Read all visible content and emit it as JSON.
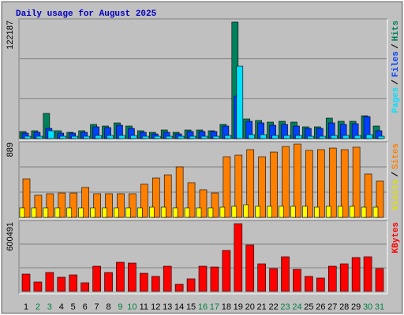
{
  "title": "Daily usage for August 2025",
  "legend_separator": "/",
  "categories": [
    "1",
    "2",
    "3",
    "4",
    "5",
    "6",
    "7",
    "8",
    "9",
    "10",
    "11",
    "12",
    "13",
    "14",
    "15",
    "16",
    "17",
    "18",
    "19",
    "20",
    "21",
    "22",
    "23",
    "24",
    "25",
    "26",
    "27",
    "28",
    "29",
    "30",
    "31"
  ],
  "category_colors": [
    "#000000",
    "#008040",
    "#008040",
    "#000000",
    "#000000",
    "#000000",
    "#000000",
    "#000000",
    "#008040",
    "#008040",
    "#000000",
    "#000000",
    "#000000",
    "#000000",
    "#000000",
    "#008040",
    "#008040",
    "#000000",
    "#000000",
    "#000000",
    "#000000",
    "#000000",
    "#008040",
    "#008040",
    "#000000",
    "#000000",
    "#000000",
    "#000000",
    "#000000",
    "#008040",
    "#008040"
  ],
  "chart_data": [
    {
      "type": "bar",
      "ylim": [
        0,
        122187
      ],
      "yticks": [
        122187
      ],
      "series": [
        {
          "name": "Hits",
          "color": "#00805c",
          "values": [
            7430,
            8256,
            26419,
            8256,
            6605,
            8256,
            14861,
            13210,
            16512,
            13210,
            8256,
            6605,
            9082,
            6605,
            9082,
            9082,
            8256,
            14861,
            122187,
            20640,
            18989,
            17338,
            18163,
            17338,
            12384,
            12384,
            21466,
            18163,
            18163,
            23942,
            13210
          ]
        },
        {
          "name": "Files",
          "color": "#0040ff",
          "values": [
            5779,
            6605,
            10733,
            5779,
            5779,
            6605,
            12384,
            11558,
            14035,
            10733,
            6605,
            4954,
            6605,
            4954,
            7430,
            7430,
            7430,
            13210,
            44582,
            18163,
            16512,
            14035,
            14861,
            13210,
            10733,
            10733,
            16512,
            14861,
            15686,
            23117,
            8256
          ]
        },
        {
          "name": "Pages",
          "color": "#00e0ff",
          "values": [
            2477,
            2477,
            8256,
            2477,
            2477,
            2477,
            3302,
            3302,
            3302,
            3302,
            2477,
            2477,
            2477,
            2477,
            2477,
            2477,
            2477,
            3302,
            75955,
            4128,
            4128,
            3302,
            3302,
            3302,
            2477,
            2477,
            3302,
            3302,
            3302,
            4128,
            2477
          ]
        }
      ]
    },
    {
      "type": "bar",
      "ylim": [
        0,
        889
      ],
      "yticks": [
        889
      ],
      "series": [
        {
          "name": "Sites",
          "color": "#ff8000",
          "values": [
            468,
            268,
            287,
            296,
            296,
            363,
            287,
            287,
            287,
            287,
            402,
            478,
            516,
            612,
            421,
            335,
            296,
            736,
            755,
            822,
            736,
            793,
            860,
            889,
            813,
            822,
            841,
            822,
            851,
            526,
            440
          ]
        },
        {
          "name": "Visits",
          "color": "#ffff00",
          "values": [
            115,
            115,
            115,
            115,
            115,
            115,
            115,
            115,
            115,
            115,
            115,
            124,
            124,
            115,
            115,
            115,
            115,
            124,
            134,
            153,
            134,
            134,
            134,
            134,
            134,
            124,
            134,
            134,
            134,
            124,
            124
          ]
        }
      ]
    },
    {
      "type": "bar",
      "ylim": [
        0,
        600491
      ],
      "yticks": [
        600491
      ],
      "series": [
        {
          "name": "KBytes",
          "color": "#ff0000",
          "values": [
            153604,
            83784,
            167568,
            125676,
            146622,
            76802,
            223424,
            167568,
            258334,
            251352,
            160586,
            132658,
            223424,
            62838,
            111712,
            223424,
            216442,
            363064,
            600491,
            411938,
            244370,
            202478,
            307208,
            195496,
            132658,
            118694,
            223424,
            244370,
            300226,
            307208,
            202478
          ]
        }
      ]
    }
  ]
}
